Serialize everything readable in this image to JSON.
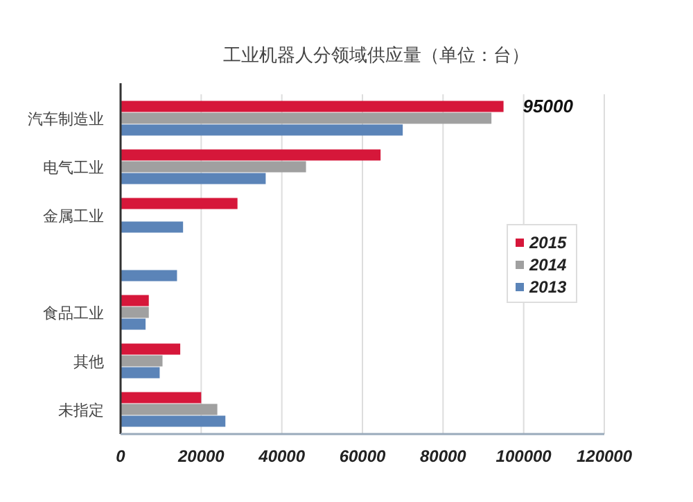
{
  "chart_data": {
    "type": "bar",
    "orientation": "horizontal",
    "title": "工业机器人分领域供应量（单位：台）",
    "categories": [
      "汽车制造业",
      "电气工业",
      "金属工业",
      null,
      "食品工业",
      "其他",
      "未指定"
    ],
    "series": [
      {
        "name": "2015",
        "color": "#d6173a",
        "values": [
          95000,
          64500,
          29000,
          null,
          7000,
          14800,
          20000
        ],
        "value_labels": [
          "95000",
          null,
          null,
          null,
          null,
          null,
          null
        ]
      },
      {
        "name": "2014",
        "color": "#a0a0a0",
        "values": [
          92000,
          46000,
          null,
          null,
          7000,
          10400,
          24000
        ]
      },
      {
        "name": "2013",
        "color": "#5b84b8",
        "values": [
          70000,
          36000,
          15500,
          14000,
          6200,
          9700,
          26000
        ]
      }
    ],
    "xlim": [
      0,
      120000
    ],
    "xticks": [
      0,
      20000,
      40000,
      60000,
      80000,
      100000,
      120000
    ],
    "grid": "x",
    "legend": "right"
  }
}
